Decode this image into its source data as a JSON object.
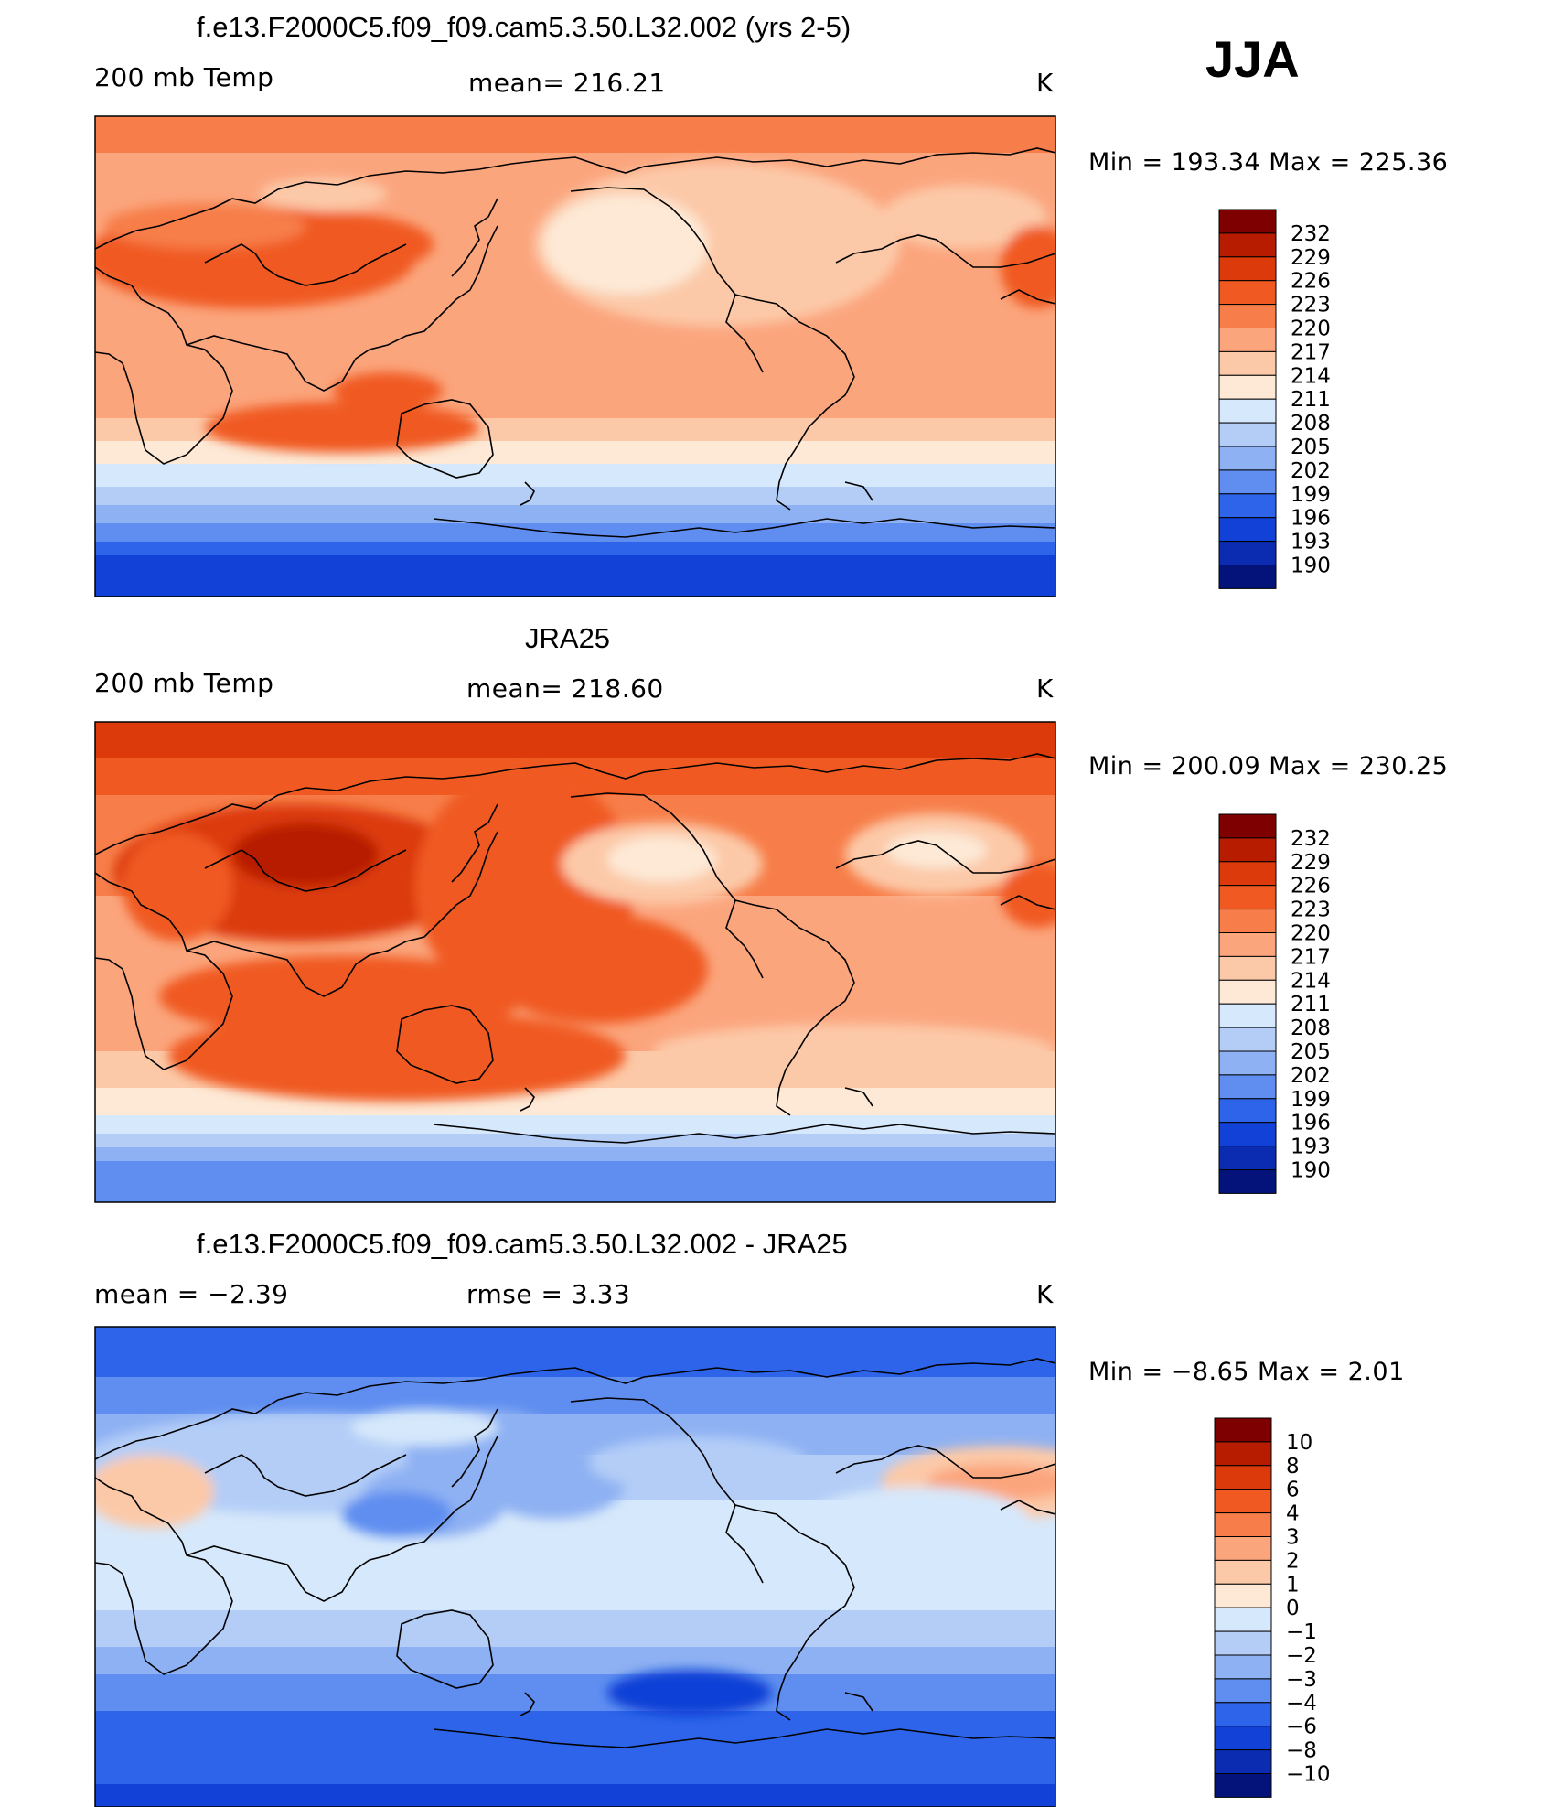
{
  "season": "JJA",
  "panels": [
    {
      "title": "f.e13.F2000C5.f09_f09.cam5.3.50.L32.002 (yrs 2-5)",
      "left_label": "200 mb Temp",
      "center_label": "mean= 216.21",
      "units": "K",
      "minmax": "Min = 193.34 Max = 225.36"
    },
    {
      "title": "JRA25",
      "left_label": "200 mb Temp",
      "center_label": "mean= 218.60",
      "units": "K",
      "minmax": "Min = 200.09 Max = 230.25"
    },
    {
      "title": "f.e13.F2000C5.f09_f09.cam5.3.50.L32.002 - JRA25",
      "left_label": "mean =   −2.39",
      "center_label": "rmse =    3.33",
      "units": "K",
      "minmax": "Min =  −8.65 Max =    2.01"
    }
  ],
  "chart_data": [
    {
      "type": "heatmap",
      "title": "f.e13.F2000C5.f09_f09.cam5.3.50.L32.002 (yrs 2-5)",
      "variable": "200 mb Temp",
      "units": "K",
      "mean": 216.21,
      "min": 193.34,
      "max": 225.36,
      "colorbar_levels": [
        "232",
        "229",
        "226",
        "223",
        "220",
        "217",
        "214",
        "211",
        "208",
        "205",
        "202",
        "199",
        "196",
        "193",
        "190"
      ],
      "projection": "cylindrical equidistant, centered on Pacific",
      "coastlines": true
    },
    {
      "type": "heatmap",
      "title": "JRA25",
      "variable": "200 mb Temp",
      "units": "K",
      "mean": 218.6,
      "min": 200.09,
      "max": 230.25,
      "colorbar_levels": [
        "232",
        "229",
        "226",
        "223",
        "220",
        "217",
        "214",
        "211",
        "208",
        "205",
        "202",
        "199",
        "196",
        "193",
        "190"
      ],
      "projection": "cylindrical equidistant, centered on Pacific",
      "coastlines": true
    },
    {
      "type": "heatmap",
      "title": "f.e13.F2000C5.f09_f09.cam5.3.50.L32.002 - JRA25",
      "units": "K",
      "mean": -2.39,
      "rmse": 3.33,
      "min": -8.65,
      "max": 2.01,
      "colorbar_levels": [
        "10",
        "8",
        "6",
        "4",
        "3",
        "2",
        "1",
        "0",
        "−1",
        "−2",
        "−3",
        "−4",
        "−6",
        "−8",
        "−10"
      ],
      "projection": "cylindrical equidistant, centered on Pacific",
      "coastlines": true
    }
  ],
  "colors": {
    "scale": [
      "#7f0000",
      "#b71c00",
      "#dc3a0b",
      "#f05a22",
      "#f77e4a",
      "#fba57d",
      "#fcc9a8",
      "#fde9d6",
      "#d6e8fb",
      "#b3cdf7",
      "#8eb1f3",
      "#5f8ef0",
      "#2e64ea",
      "#1141d6",
      "#0b2bb0",
      "#03137a"
    ]
  }
}
